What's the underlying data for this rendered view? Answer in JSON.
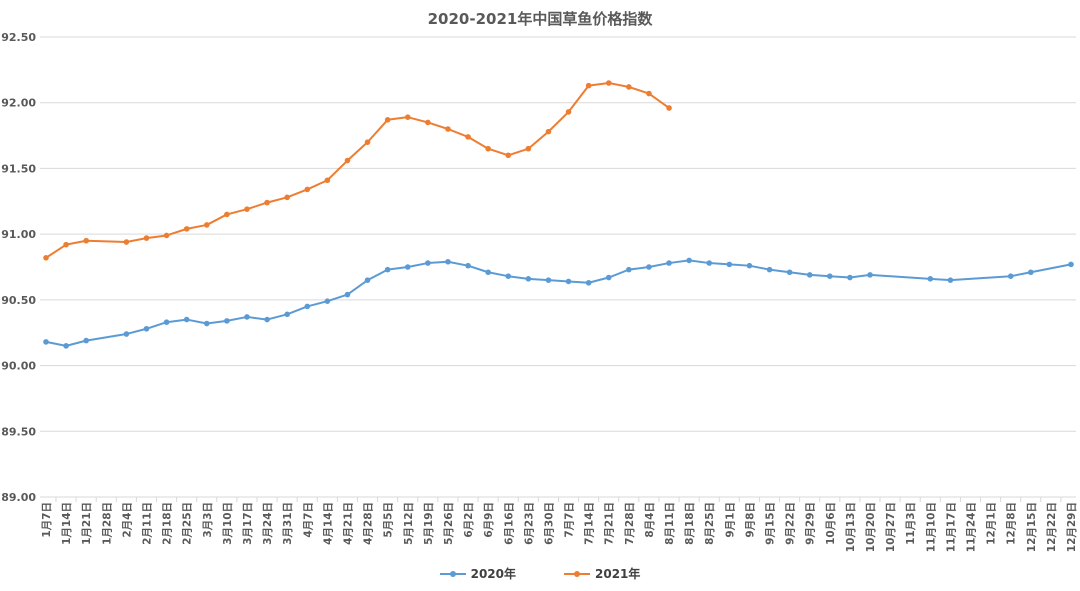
{
  "chart_data": {
    "type": "line",
    "title": "2020-2021年中国草鱼价格指数",
    "xlabel": "",
    "ylabel": "",
    "ylim": [
      89.0,
      92.5
    ],
    "yticks": [
      "89.00",
      "89.50",
      "90.00",
      "90.50",
      "91.00",
      "91.50",
      "92.00",
      "92.50"
    ],
    "grid": true,
    "legend_position": "bottom",
    "categories": [
      "1月7日",
      "1月14日",
      "1月21日",
      "1月28日",
      "2月4日",
      "2月11日",
      "2月18日",
      "2月25日",
      "3月3日",
      "3月10日",
      "3月17日",
      "3月24日",
      "3月31日",
      "4月7日",
      "4月14日",
      "4月21日",
      "4月28日",
      "5月5日",
      "5月12日",
      "5月19日",
      "5月26日",
      "6月2日",
      "6月9日",
      "6月16日",
      "6月23日",
      "6月30日",
      "7月7日",
      "7月14日",
      "7月21日",
      "7月28日",
      "8月4日",
      "8月11日",
      "8月18日",
      "8月25日",
      "9月1日",
      "9月8日",
      "9月15日",
      "9月22日",
      "9月29日",
      "10月6日",
      "10月13日",
      "10月20日",
      "10月27日",
      "11月3日",
      "11月10日",
      "11月17日",
      "11月24日",
      "12月1日",
      "12月8日",
      "12月15日",
      "12月22日",
      "12月29日"
    ],
    "series": [
      {
        "name": "2020年",
        "color": "#5B9BD5",
        "values": [
          90.18,
          90.15,
          90.19,
          null,
          90.24,
          90.28,
          90.33,
          90.35,
          90.32,
          90.34,
          90.37,
          90.35,
          90.39,
          90.45,
          90.49,
          90.54,
          90.65,
          90.73,
          90.75,
          90.78,
          90.79,
          90.76,
          90.71,
          90.68,
          90.66,
          90.65,
          90.64,
          90.63,
          90.67,
          90.73,
          90.75,
          90.78,
          90.8,
          90.78,
          90.77,
          90.76,
          90.73,
          90.71,
          90.69,
          90.68,
          90.67,
          90.69,
          null,
          null,
          90.66,
          90.65,
          null,
          null,
          90.68,
          90.71,
          null,
          90.77
        ]
      },
      {
        "name": "2021年",
        "color": "#ED7D31",
        "values": [
          90.82,
          90.92,
          90.95,
          null,
          90.94,
          90.97,
          90.99,
          91.04,
          91.07,
          91.15,
          91.19,
          91.24,
          91.28,
          91.34,
          91.41,
          91.56,
          91.7,
          91.87,
          91.89,
          91.85,
          91.8,
          91.74,
          91.65,
          91.6,
          91.65,
          91.78,
          91.93,
          92.13,
          92.15,
          92.12,
          92.07,
          91.96,
          null,
          null,
          null,
          null,
          null,
          null,
          null,
          null,
          null,
          null,
          null,
          null,
          null,
          null,
          null,
          null,
          null,
          null,
          null,
          null
        ]
      }
    ]
  }
}
